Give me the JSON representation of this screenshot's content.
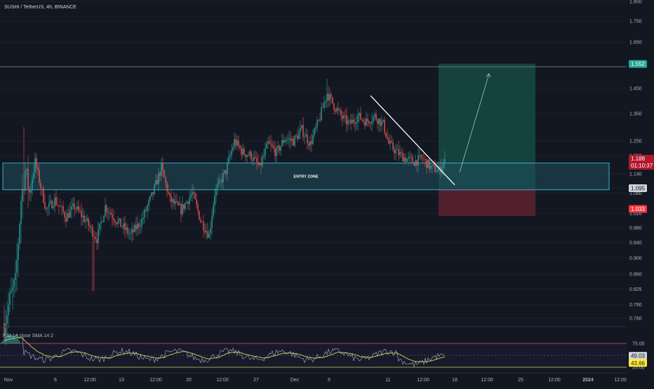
{
  "header": {
    "symbol_line": "SUSHI / TetherUS, 4h, BINANCE"
  },
  "chart_data": {
    "type": "candlestick",
    "title": "SUSHI / TetherUS, 4h, BINANCE",
    "y_scale": "log",
    "ylim": [
      0.74,
      1.86
    ],
    "y_ticks": [
      1.85,
      1.75,
      1.65,
      1.45,
      1.35,
      1.25,
      1.2,
      1.14,
      1.095,
      1.08,
      1.033,
      1.02,
      0.98,
      0.94,
      0.9,
      0.86,
      0.825,
      0.79,
      0.76
    ],
    "x_ticks": [
      "Nov",
      "6",
      "12:00",
      "13",
      "12:00",
      "20",
      "12:00",
      "27",
      "Dec",
      "5",
      "11",
      "12:00",
      "18",
      "12:00",
      "25",
      "12:00",
      "2024",
      "12:00"
    ],
    "price_path": [
      {
        "bar": 0,
        "price": 0.75
      },
      {
        "bar": 4,
        "price": 0.8
      },
      {
        "bar": 8,
        "price": 0.84
      },
      {
        "bar": 12,
        "price": 1.06
      },
      {
        "bar": 15,
        "price": 1.15
      },
      {
        "bar": 18,
        "price": 1.08
      },
      {
        "bar": 22,
        "price": 1.18
      },
      {
        "bar": 26,
        "price": 1.1
      },
      {
        "bar": 30,
        "price": 1.03
      },
      {
        "bar": 36,
        "price": 1.06
      },
      {
        "bar": 44,
        "price": 1.01
      },
      {
        "bar": 50,
        "price": 1.04
      },
      {
        "bar": 58,
        "price": 1.0
      },
      {
        "bar": 66,
        "price": 0.95
      },
      {
        "bar": 72,
        "price": 1.04
      },
      {
        "bar": 80,
        "price": 1.0
      },
      {
        "bar": 90,
        "price": 0.96
      },
      {
        "bar": 98,
        "price": 1.0
      },
      {
        "bar": 106,
        "price": 1.08
      },
      {
        "bar": 112,
        "price": 1.16
      },
      {
        "bar": 118,
        "price": 1.06
      },
      {
        "bar": 126,
        "price": 1.03
      },
      {
        "bar": 134,
        "price": 1.08
      },
      {
        "bar": 140,
        "price": 1.0
      },
      {
        "bar": 146,
        "price": 0.96
      },
      {
        "bar": 150,
        "price": 1.08
      },
      {
        "bar": 158,
        "price": 1.15
      },
      {
        "bar": 164,
        "price": 1.25
      },
      {
        "bar": 170,
        "price": 1.21
      },
      {
        "bar": 176,
        "price": 1.2
      },
      {
        "bar": 182,
        "price": 1.16
      },
      {
        "bar": 188,
        "price": 1.24
      },
      {
        "bar": 194,
        "price": 1.21
      },
      {
        "bar": 200,
        "price": 1.26
      },
      {
        "bar": 206,
        "price": 1.25
      },
      {
        "bar": 212,
        "price": 1.29
      },
      {
        "bar": 218,
        "price": 1.24
      },
      {
        "bar": 224,
        "price": 1.32
      },
      {
        "bar": 230,
        "price": 1.43
      },
      {
        "bar": 234,
        "price": 1.39
      },
      {
        "bar": 240,
        "price": 1.34
      },
      {
        "bar": 246,
        "price": 1.31
      },
      {
        "bar": 252,
        "price": 1.34
      },
      {
        "bar": 258,
        "price": 1.32
      },
      {
        "bar": 264,
        "price": 1.34
      },
      {
        "bar": 270,
        "price": 1.31
      },
      {
        "bar": 274,
        "price": 1.24
      },
      {
        "bar": 280,
        "price": 1.21
      },
      {
        "bar": 286,
        "price": 1.19
      },
      {
        "bar": 292,
        "price": 1.18
      },
      {
        "bar": 298,
        "price": 1.19
      },
      {
        "bar": 304,
        "price": 1.16
      },
      {
        "bar": 310,
        "price": 1.15
      },
      {
        "bar": 314,
        "price": 1.188
      }
    ],
    "entry_zone": {
      "label": "ENTRY ZONE",
      "top": 1.175,
      "bottom": 1.09
    },
    "target_price": 1.552,
    "stop_price": 1.033,
    "entry_price": 1.095,
    "current_price": 1.188,
    "countdown": "01:10:37",
    "rsi": {
      "label": "RSI (14, close, SMA, 14, 2)",
      "label_visible": "RSI 14 close SMA 14 2",
      "upper": 75.0,
      "lower": 25.0,
      "value": 43.66,
      "sma_value": 49.03,
      "ticks": [
        "75.00",
        "25.00"
      ]
    }
  },
  "badges": {
    "target": "1.552",
    "current": "1.188",
    "countdown": "01:10:37",
    "entry": "1.095",
    "stop": "1.033",
    "rsi_sma": "49.03",
    "rsi_value": "43.66"
  },
  "colors": {
    "background": "#131722",
    "up": "#26a69a",
    "down": "#ef5350",
    "zone_fill": "#1f4f5c",
    "zone_stroke": "#2cb3c7",
    "target_fill": "#17514a",
    "stop_fill": "#5b2130",
    "target_badge": "#26a69a",
    "stop_badge": "#f23645",
    "current_badge": "#b2182b",
    "entry_badge": "#d1d4dc",
    "rsi_line": "#b2b5be",
    "rsi_sma": "#d4d463",
    "rsi_band_upper": "#d6537a",
    "rsi_band_lower": "#d4d463",
    "axis_text": "#b2b5be",
    "trendline": "#ffffff",
    "projection": "#a0c4c8"
  }
}
